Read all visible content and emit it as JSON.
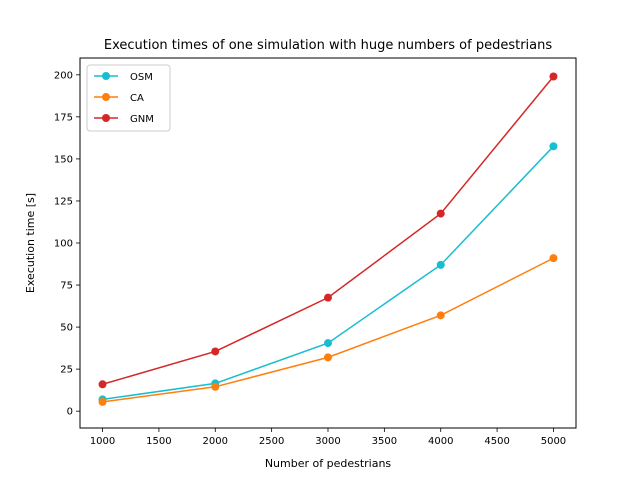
{
  "chart_data": {
    "type": "line",
    "title": "Execution times of one simulation with huge numbers of pedestrians",
    "xlabel": "Number of pedestrians",
    "ylabel": "Execution time [s]",
    "x": [
      1000,
      2000,
      3000,
      4000,
      5000
    ],
    "xlim": [
      800,
      5200
    ],
    "ylim": [
      -10,
      210
    ],
    "xticks": [
      1000,
      1500,
      2000,
      2500,
      3000,
      3500,
      4000,
      4500,
      5000
    ],
    "yticks": [
      0,
      25,
      50,
      75,
      100,
      125,
      150,
      175,
      200
    ],
    "grid": false,
    "legend_position": "top-left",
    "series": [
      {
        "name": "OSM",
        "color": "#17becf",
        "values": [
          7,
          16.5,
          40.5,
          87,
          157.5
        ]
      },
      {
        "name": "CA",
        "color": "#ff7f0e",
        "values": [
          5.5,
          14.5,
          32,
          57,
          91
        ]
      },
      {
        "name": "GNM",
        "color": "#d62728",
        "values": [
          16,
          35.5,
          67.5,
          117.5,
          199
        ]
      }
    ]
  }
}
